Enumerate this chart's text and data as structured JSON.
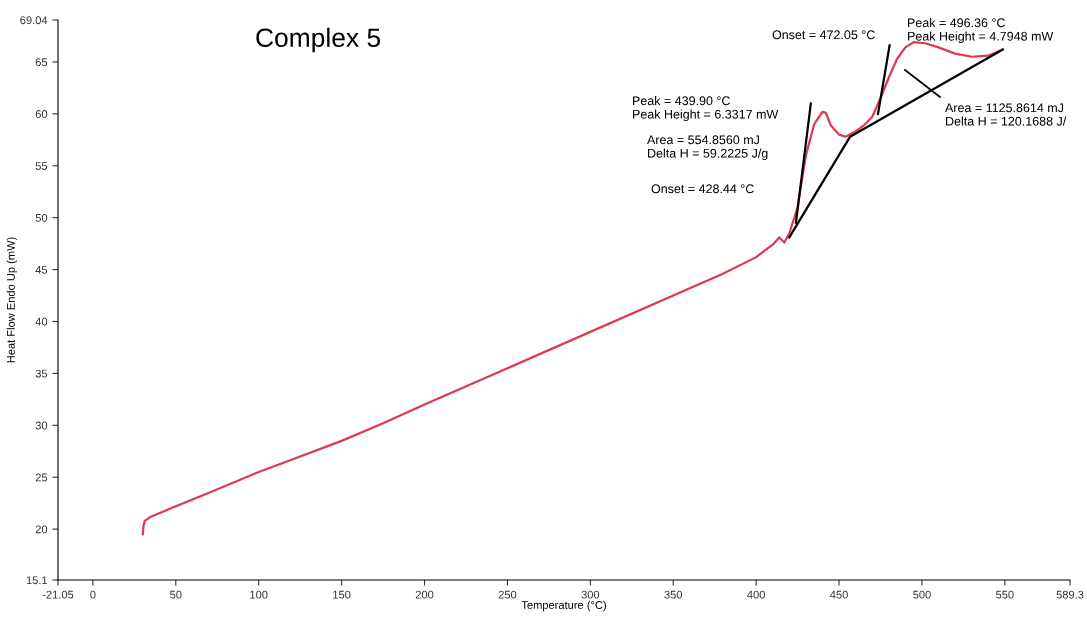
{
  "chart_data": {
    "type": "line",
    "title": "Complex 5",
    "xlabel": "Temperature (°C)",
    "ylabel": "Heat Flow Endo Up (mW)",
    "xlim": [
      -21.05,
      589.3
    ],
    "xticks": [
      -21.05,
      0,
      50,
      100,
      150,
      200,
      250,
      300,
      350,
      400,
      450,
      500,
      550,
      589.3
    ],
    "ylim": [
      15.1,
      69.04
    ],
    "yticks": [
      15.1,
      20,
      25,
      30,
      35,
      40,
      45,
      50,
      55,
      60,
      65,
      69.04
    ],
    "grid": false,
    "marker": "none",
    "line_style": "solid",
    "series": [
      {
        "color": "#e0384f",
        "x": [
          30.1,
          30.5,
          31.3,
          35,
          50,
          68.6,
          100,
          125,
          150,
          175,
          200,
          250,
          300,
          350,
          380,
          400,
          410,
          414,
          417,
          420,
          425,
          430,
          435,
          440,
          442,
          445,
          450,
          454,
          460,
          465,
          470,
          475,
          480,
          485,
          490,
          495,
          502,
          510,
          520,
          530,
          540,
          548.7
        ],
        "values": [
          19.5,
          20.3,
          20.8,
          21.2,
          22.2,
          23.4,
          25.5,
          27,
          28.5,
          30.2,
          32,
          35.5,
          39,
          42.5,
          44.6,
          46.2,
          47.4,
          48.1,
          47.6,
          48.5,
          51,
          56,
          59,
          60.2,
          60.1,
          58.9,
          58.0,
          57.8,
          58.3,
          58.9,
          59.7,
          61.5,
          63.5,
          65.3,
          66.4,
          66.9,
          66.8,
          66.4,
          65.8,
          65.5,
          65.6,
          66.2
        ]
      },
      {
        "color": "#000000",
        "x": [
          420,
          456.7,
          456.7,
          548.7
        ],
        "values": [
          48.1,
          57.8,
          57.8,
          66.2
        ]
      },
      {
        "color": "#000000",
        "x": [
          424,
          433
        ],
        "values": [
          49.5,
          61.0
        ]
      },
      {
        "color": "#000000",
        "x": [
          473.5,
          480.5
        ],
        "values": [
          60.0,
          66.6
        ]
      }
    ],
    "annotations": [
      "Peak = 439.90 °C\nPeak Height = 6.3317 mW",
      "Area = 554.8560 mJ\nDelta H = 59.2225 J/g",
      "Onset = 428.44 °C",
      "Onset = 472.05 °C",
      "Peak = 496.36 °C\nPeak Height = 4.7948 mW",
      "Area = 1125.8614 mJ\nDelta H = 120.1688 J/"
    ]
  }
}
